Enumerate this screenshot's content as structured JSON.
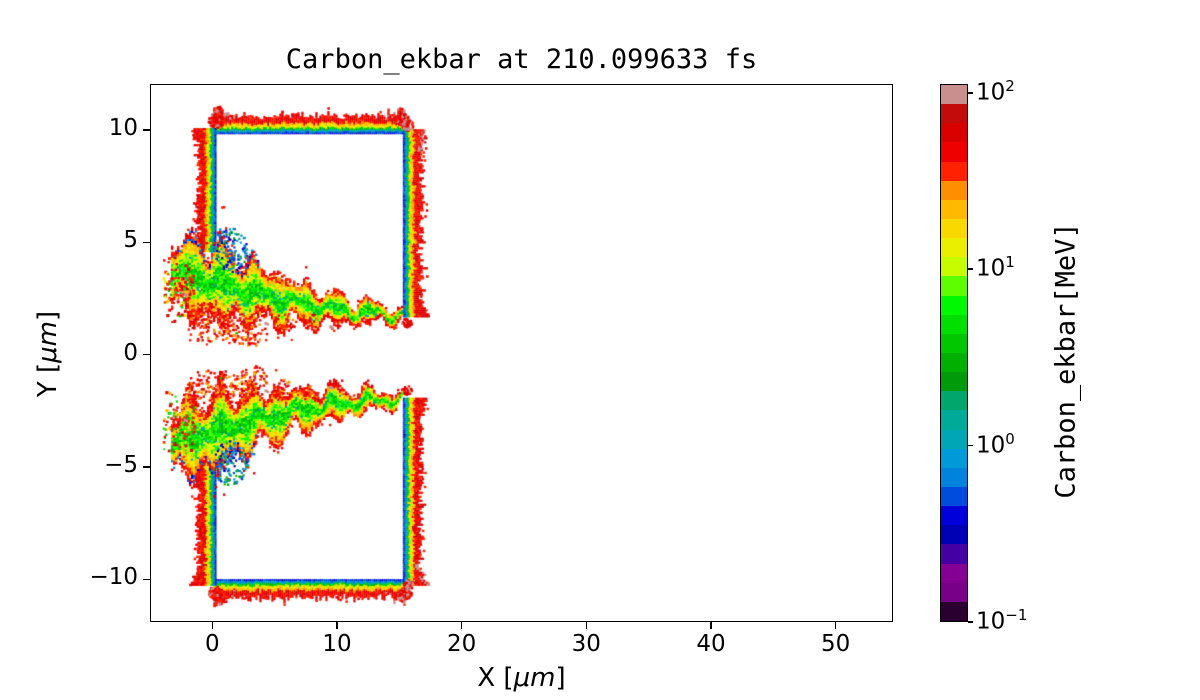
{
  "figure": {
    "background": "#ffffff"
  },
  "chart_data": {
    "type": "heatmap",
    "title": "Carbon_ekbar at 210.099633 fs",
    "xlabel": {
      "prefix": "X [",
      "unit": "μm",
      "suffix": "]"
    },
    "ylabel": {
      "prefix": "Y [",
      "unit": "μm",
      "suffix": "]"
    },
    "xlim": [
      -5,
      54.6
    ],
    "ylim": [
      -11.9,
      12.05
    ],
    "x_ticks": [
      {
        "value": 0,
        "label": "0"
      },
      {
        "value": 10,
        "label": "10"
      },
      {
        "value": 20,
        "label": "20"
      },
      {
        "value": 30,
        "label": "30"
      },
      {
        "value": 40,
        "label": "40"
      },
      {
        "value": 50,
        "label": "50"
      }
    ],
    "y_ticks": [
      {
        "value": 10,
        "label": "10"
      },
      {
        "value": 5,
        "label": "5"
      },
      {
        "value": 0,
        "label": "0"
      },
      {
        "value": -5,
        "label": "−5"
      },
      {
        "value": -10,
        "label": "−10"
      }
    ],
    "grid": false,
    "colorbar": {
      "label": "Carbon_ekbar[MeV]",
      "scale": "log",
      "vmin": 0.1,
      "vmax": 112,
      "log_range": [
        -1,
        2.05
      ],
      "ticks": [
        {
          "value": 100,
          "mantissa": "10",
          "exponent": "2"
        },
        {
          "value": 10,
          "mantissa": "10",
          "exponent": "1"
        },
        {
          "value": 1,
          "mantissa": "10",
          "exponent": "0"
        },
        {
          "value": 0.1,
          "mantissa": "10",
          "exponent": "−1"
        }
      ],
      "n_segments": 28,
      "colormap": "nipy_spectral (discrete)",
      "palette": [
        "#2a0031",
        "#780089",
        "#840095",
        "#4400a2",
        "#0000b5",
        "#0000d9",
        "#004ddd",
        "#0083dd",
        "#009ad9",
        "#00a6b5",
        "#00aa99",
        "#00a66b",
        "#009a0a",
        "#00af00",
        "#00c700",
        "#00df00",
        "#00f800",
        "#5dff00",
        "#c6fb00",
        "#eaef00",
        "#f9d800",
        "#ffba00",
        "#ff8e00",
        "#ff2100",
        "#ee0000",
        "#d90000",
        "#c40b0b",
        "#c98e8e"
      ]
    },
    "features": {
      "description": "Mean carbon ion kinetic energy map of a laser-irradiated double-block target: two hollow rectangular blocks (x 0 to 15.4 um; upper y 1.8 to 10, lower y -10 to -1.8) whose rims are heated (blue ~0.5 MeV inner edge grading to red ~50-100 MeV outside, gray >100 MeV at corners), with turbulent plasma plumes blown left-to-right along the channel edges near y = +/-2, extending from x ~ -3.5 to the right block edge.",
      "band_indices_inner_to_outer": [
        [
          5,
          1.3
        ],
        [
          7,
          1.3
        ],
        [
          9,
          1.5
        ],
        [
          14,
          1.8
        ],
        [
          19,
          2.2
        ],
        [
          21,
          2.4
        ]
      ],
      "borders": [
        {
          "from": [
            0,
            10
          ],
          "to": [
            15.35,
            10
          ],
          "out": [
            0,
            -1
          ],
          "gray_start": true,
          "gray_end": true
        },
        {
          "from": [
            0,
            4.7
          ],
          "to": [
            0,
            10.15
          ],
          "out": [
            -1,
            0
          ],
          "gray_start": false,
          "gray_end": false
        },
        {
          "from": [
            15.3,
            1.8
          ],
          "to": [
            15.3,
            10.15
          ],
          "out": [
            1,
            0
          ],
          "gray_start": false,
          "gray_end": true
        },
        {
          "from": [
            0,
            -10
          ],
          "to": [
            15.35,
            -10
          ],
          "out": [
            0,
            1
          ],
          "gray_start": true,
          "gray_end": true
        },
        {
          "from": [
            0,
            -10.15
          ],
          "to": [
            0,
            -4.7
          ],
          "out": [
            -1,
            0
          ],
          "gray_start": false,
          "gray_end": false
        },
        {
          "from": [
            15.3,
            -10.15
          ],
          "to": [
            15.3,
            -1.8
          ],
          "out": [
            1,
            0
          ],
          "gray_start": true,
          "gray_end": false
        }
      ],
      "corner_blobs": [
        [
          0.15,
          10.5,
          8,
          0.1
        ],
        [
          0.3,
          10.95,
          5,
          0.2
        ],
        [
          15.05,
          10.55,
          7,
          0.3
        ],
        [
          15.5,
          10.3,
          6,
          0.5
        ],
        [
          0.1,
          -10.5,
          7,
          0.1
        ],
        [
          0.45,
          -10.9,
          4,
          0.2
        ],
        [
          15.3,
          -10.55,
          7,
          0.3
        ],
        [
          15.6,
          -10.15,
          5,
          0.5
        ],
        [
          15.45,
          1.5,
          5,
          0.15
        ],
        [
          15.45,
          -1.5,
          5,
          0.15
        ]
      ],
      "plume_spine": [
        [
          -3.4,
          3.8
        ],
        [
          -2,
          3.6
        ],
        [
          -0.5,
          3.4
        ],
        [
          1,
          3.15
        ],
        [
          2.5,
          2.95
        ],
        [
          4,
          2.75
        ],
        [
          5.5,
          2.55
        ],
        [
          7,
          2.35
        ],
        [
          8.5,
          2.22
        ],
        [
          10,
          2.1
        ],
        [
          11.5,
          2.0
        ],
        [
          13,
          1.95
        ],
        [
          14.2,
          1.9
        ],
        [
          15.2,
          1.85
        ]
      ],
      "plume_halfwidth": [
        1.25,
        1.5,
        1.6,
        1.55,
        1.35,
        1.15,
        0.95,
        0.8,
        0.7,
        0.6,
        0.5,
        0.4,
        0.28,
        0.16
      ],
      "plumes": [
        {
          "name": "upper-plume",
          "seed": 7,
          "side": 1
        },
        {
          "name": "lower-plume",
          "seed": 13,
          "side": -1
        }
      ],
      "blue_patch": {
        "x": 1.3,
        "y": 4.75,
        "rx": 1.35,
        "ry": 1.0
      },
      "under_blobs": [
        [
          -0.7,
          1.4,
          1.15
        ],
        [
          1.6,
          1.1,
          0.95
        ],
        [
          3.3,
          0.95,
          0.8
        ],
        [
          5.6,
          1.5,
          0.7
        ],
        [
          7.6,
          1.7,
          0.55
        ]
      ],
      "left_speckles": {
        "x0": -4.1,
        "x1": -1.6,
        "yc": 3.0,
        "spread": 1.7,
        "n": 120
      },
      "gray_speckles": [
        [
          4.1,
          1.5
        ],
        [
          9.3,
          1.35
        ],
        [
          -2.4,
          2.8
        ]
      ],
      "dots": [
        [
          1.8,
          1.05,
          14
        ],
        [
          -0.6,
          0.55,
          23
        ],
        [
          6.2,
          0.75,
          23
        ],
        [
          0.5,
          -0.95,
          14
        ],
        [
          2.2,
          -0.7,
          23
        ]
      ]
    }
  }
}
